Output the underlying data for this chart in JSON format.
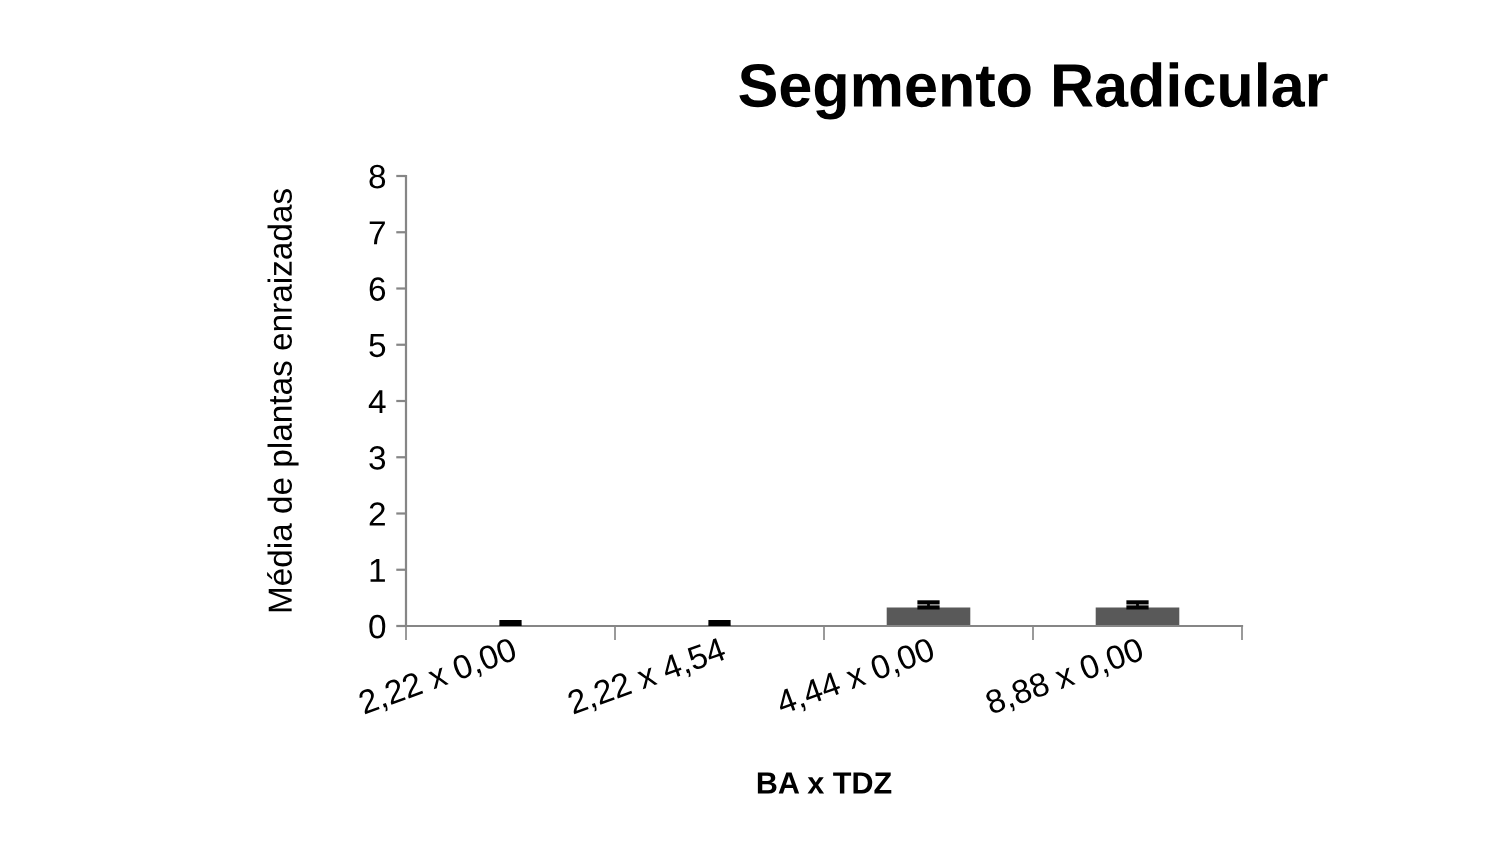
{
  "chart_data": {
    "type": "bar",
    "title": "Segmento Radicular",
    "xlabel": "BA x TDZ",
    "ylabel": "Média de plantas enraizadas",
    "categories": [
      "2,22 x 0,00",
      "2,22 x 4,54",
      "4,44 x 0,00",
      "8,88 x 0,00"
    ],
    "values": [
      0,
      0,
      0.33,
      0.33
    ],
    "errors": [
      [
        0,
        0.07
      ],
      [
        0,
        0.07
      ],
      [
        0.33,
        0.42
      ],
      [
        0.33,
        0.42
      ]
    ],
    "color": "#595959",
    "ylim": [
      0,
      8
    ],
    "yticks": [
      0,
      1,
      2,
      3,
      4,
      5,
      6,
      7,
      8
    ],
    "grid": false,
    "legend": false
  }
}
